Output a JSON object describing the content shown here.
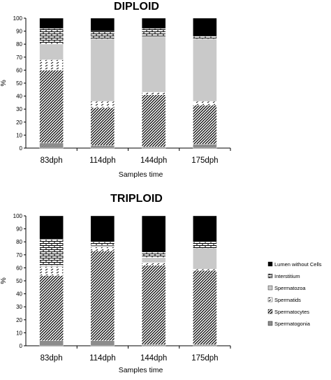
{
  "chart_data": [
    {
      "type": "bar",
      "stacked": true,
      "title": "DIPLOID",
      "xlabel": "Samples time",
      "ylabel": "%",
      "ylim": [
        0,
        100
      ],
      "yticks": [
        0,
        10,
        20,
        30,
        40,
        50,
        60,
        70,
        80,
        90,
        100
      ],
      "categories": [
        "83dph",
        "114dph",
        "144dph",
        "175dph"
      ],
      "series": [
        {
          "name": "Spermatogonia",
          "values": [
            4,
            2,
            1,
            3
          ]
        },
        {
          "name": "Spermatocytes",
          "values": [
            56,
            29,
            40,
            30
          ]
        },
        {
          "name": "Spermatids",
          "values": [
            8,
            5,
            2,
            3
          ]
        },
        {
          "name": "Spermatozoa",
          "values": [
            12,
            48,
            43,
            48
          ]
        },
        {
          "name": "Interstitium",
          "values": [
            12,
            6,
            6,
            2
          ]
        },
        {
          "name": "Lumen without Cells",
          "values": [
            8,
            10,
            8,
            14
          ]
        }
      ]
    },
    {
      "type": "bar",
      "stacked": true,
      "title": "TRIPLOID",
      "xlabel": "Samples time",
      "ylabel": "%",
      "ylim": [
        0,
        100
      ],
      "yticks": [
        0,
        10,
        20,
        30,
        40,
        50,
        60,
        70,
        80,
        90,
        100
      ],
      "categories": [
        "83dph",
        "114dph",
        "144dph",
        "175dph"
      ],
      "series": [
        {
          "name": "Spermatogonia",
          "values": [
            4,
            4,
            1,
            1
          ]
        },
        {
          "name": "Spermatocytes",
          "values": [
            50,
            69,
            61,
            57
          ]
        },
        {
          "name": "Spermatids",
          "values": [
            7,
            3,
            2,
            1
          ]
        },
        {
          "name": "Spermatozoa",
          "values": [
            1,
            1,
            4,
            16
          ]
        },
        {
          "name": "Interstitium",
          "values": [
            20,
            3,
            4,
            5
          ]
        },
        {
          "name": "Lumen without Cells",
          "values": [
            18,
            20,
            28,
            20
          ]
        }
      ]
    }
  ],
  "legend": {
    "position": "right",
    "order": [
      "Lumen without Cells",
      "Interstitium",
      "Spermatozoa",
      "Spermatids",
      "Spermatocytes",
      "Spermatogonia"
    ]
  },
  "fills": {
    "Spermatogonia": "#8c8c8c",
    "Spermatocytes": "pattern-diagonal-dense",
    "Spermatids": "pattern-dashes",
    "Spermatozoa": "#c9c9c9",
    "Interstitium": "pattern-brick",
    "Lumen without Cells": "#000000"
  }
}
